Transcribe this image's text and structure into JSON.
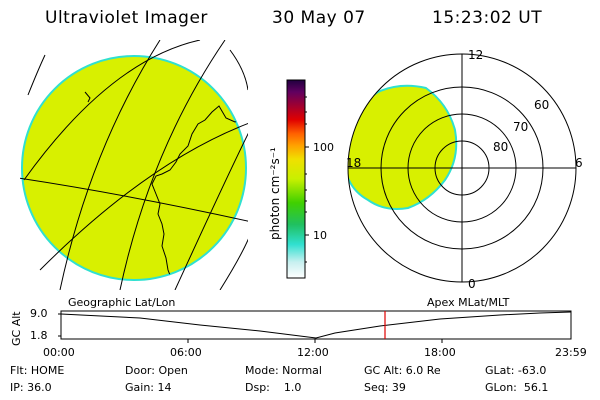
{
  "header": {
    "instrument": "Ultraviolet Imager",
    "date": "30 May 07",
    "time": "15:23:02 UT"
  },
  "colorbar": {
    "unit_label": "photon cm⁻²s⁻¹",
    "ticks": [
      "100",
      "10"
    ],
    "stops": [
      "#ffffff",
      "#c8f0f0",
      "#30e0d0",
      "#20c060",
      "#40d000",
      "#c8f000",
      "#f0e000",
      "#ffa000",
      "#ff6000",
      "#e00000",
      "#a00030",
      "#600060",
      "#200040"
    ]
  },
  "polar": {
    "mlt_labels": {
      "top": "12",
      "left": "18",
      "right": "6",
      "bottom": "0"
    },
    "lat_labels": [
      "60",
      "70",
      "80"
    ]
  },
  "timeline": {
    "ylabel": "GC Alt",
    "y_ticks": [
      "9.0",
      "1.8"
    ],
    "left_label": "Geographic Lat/Lon",
    "right_label": "Apex MLat/MLT",
    "x_ticks": [
      "00:00",
      "06:00",
      "12:00",
      "18:00",
      "23:59"
    ]
  },
  "status": {
    "flt": "Flt: HOME",
    "ip": "IP: 36.0",
    "door": "Door: Open",
    "gain": "Gain: 14",
    "mode": "Mode: Normal",
    "dsp": "Dsp:    1.0",
    "gcalt": "GC Alt: 6.0 Re",
    "seq": "Seq: 39",
    "glat": "GLat: -63.0",
    "glon": "GLon:  56.1"
  },
  "colors": {
    "image_fill": "#d8f000",
    "image_edge": "#30e0d0",
    "marker": "#e00000"
  }
}
